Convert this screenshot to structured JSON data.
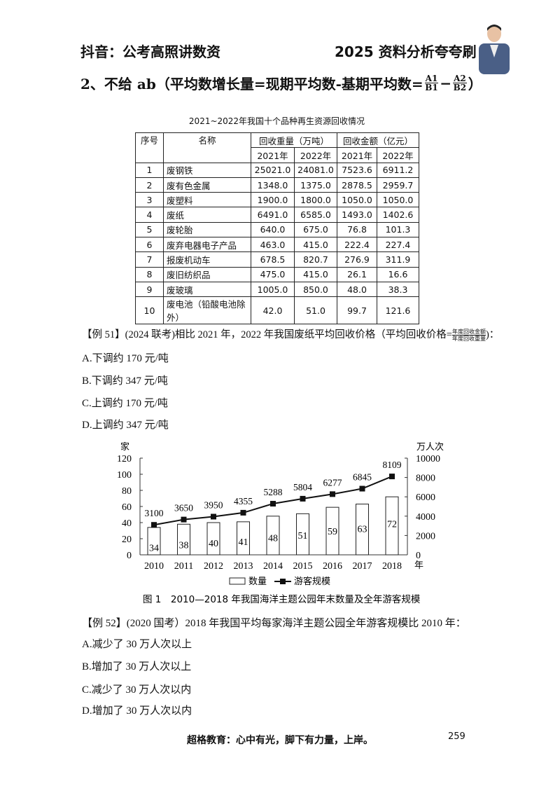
{
  "header": {
    "left": "抖音：公考高照讲数资",
    "right": "2025 资料分析夸夸刷"
  },
  "heading": {
    "text": "2、不给 ab（平均数增长量=现期平均数-基期平均数=",
    "frac1_num": "A1",
    "frac1_den": "B1",
    "minus": "−",
    "frac2_num": "A2",
    "frac2_den": "B2",
    "close": "）"
  },
  "table": {
    "title": "2021~2022年我国十个品种再生资源回收情况",
    "headers": {
      "no": "序号",
      "name": "名称",
      "weight": "回收重量（万吨）",
      "amount": "回收金额（亿元）",
      "y2021": "2021年",
      "y2022": "2022年"
    },
    "rows": [
      [
        "1",
        "废钢铁",
        "25021.0",
        "24081.0",
        "7523.6",
        "6911.2"
      ],
      [
        "2",
        "废有色金属",
        "1348.0",
        "1375.0",
        "2878.5",
        "2959.7"
      ],
      [
        "3",
        "废塑料",
        "1900.0",
        "1800.0",
        "1050.0",
        "1050.0"
      ],
      [
        "4",
        "废纸",
        "6491.0",
        "6585.0",
        "1493.0",
        "1402.6"
      ],
      [
        "5",
        "废轮胎",
        "640.0",
        "675.0",
        "76.8",
        "101.3"
      ],
      [
        "6",
        "废弃电器电子产品",
        "463.0",
        "415.0",
        "222.4",
        "227.4"
      ],
      [
        "7",
        "报废机动车",
        "678.5",
        "820.7",
        "276.9",
        "311.9"
      ],
      [
        "8",
        "废旧纺织品",
        "475.0",
        "415.0",
        "26.1",
        "16.6"
      ],
      [
        "9",
        "废玻璃",
        "1005.0",
        "850.0",
        "48.0",
        "38.3"
      ],
      [
        "10",
        "废电池（铅酸电池除外）",
        "42.0",
        "51.0",
        "99.7",
        "121.6"
      ]
    ]
  },
  "q51": {
    "stem": "【例 51】(2024 联考)相比 2021 年，2022 年我国废纸平均回收价格（平均回收价格=",
    "frac_num": "年度回收金额",
    "frac_den": "年度回收重量",
    "stem_end": ")：",
    "options": [
      "A.下调约 170 元/吨",
      "B.下调约 347 元/吨",
      "C.上调约 170 元/吨",
      "D.上调约 347 元/吨"
    ]
  },
  "chart_data": {
    "type": "bar+line",
    "title": "图 1　2010—2018 年我国海洋主题公园年末数量及全年游客规模",
    "categories": [
      "2010",
      "2011",
      "2012",
      "2013",
      "2014",
      "2015",
      "2016",
      "2017",
      "2018"
    ],
    "x_unit": "年",
    "left_axis": {
      "unit": "家",
      "range": [
        0,
        120
      ],
      "ticks": [
        0,
        20,
        40,
        60,
        80,
        100,
        120
      ]
    },
    "right_axis": {
      "unit": "万人次",
      "range": [
        0,
        10000
      ],
      "ticks": [
        0,
        2000,
        4000,
        6000,
        8000,
        10000
      ]
    },
    "series": [
      {
        "name": "数量",
        "type": "bar",
        "axis": "left",
        "values": [
          34,
          38,
          40,
          41,
          48,
          51,
          59,
          63,
          72
        ]
      },
      {
        "name": "游客规模",
        "type": "line",
        "axis": "right",
        "values": [
          3100,
          3650,
          3950,
          4355,
          5288,
          5804,
          6277,
          6845,
          8109
        ]
      }
    ],
    "legend": "bottom",
    "grid": false
  },
  "q52": {
    "stem": "【例 52】(2020 国考）2018 年我国平均每家海洋主题公园全年游客规模比 2010 年：",
    "options": [
      "A.减少了 30 万人次以上",
      "B.增加了 30 万人次以上",
      "C.减少了 30 万人次以内",
      "D.增加了 30 万人次以内"
    ]
  },
  "footer": {
    "slogan": "超格教育：心中有光，脚下有力量，上岸。",
    "page": "259"
  }
}
